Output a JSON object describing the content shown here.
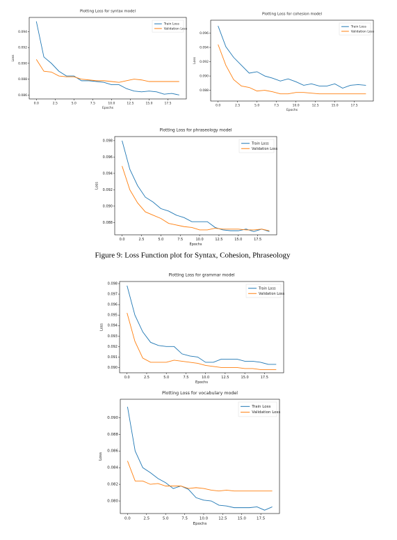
{
  "caption": "Figure 9: Loss Function plot for Syntax, Cohesion, Phraseology",
  "chart_data": [
    {
      "type": "line",
      "title": "Plotting Loss for syntax model",
      "xlabel": "Epochs",
      "ylabel": "Loss",
      "legend": "upper right",
      "x": [
        0,
        1,
        2,
        3,
        4,
        5,
        6,
        7,
        8,
        9,
        10,
        11,
        12,
        13,
        14,
        15,
        16,
        17,
        18,
        19
      ],
      "series": [
        {
          "name": "Train Loss",
          "color": "#1f77b4",
          "values": [
            0.0953,
            0.0908,
            0.09,
            0.089,
            0.0884,
            0.0884,
            0.0878,
            0.0878,
            0.0877,
            0.0876,
            0.0873,
            0.0873,
            0.0868,
            0.0865,
            0.0864,
            0.0865,
            0.0864,
            0.0861,
            0.0862,
            0.086
          ]
        },
        {
          "name": "Validation Loss",
          "color": "#ff7f0e",
          "values": [
            0.0905,
            0.089,
            0.0889,
            0.0884,
            0.0883,
            0.0883,
            0.088,
            0.0879,
            0.0878,
            0.0878,
            0.0877,
            0.0876,
            0.0878,
            0.088,
            0.0879,
            0.0877,
            0.0877,
            0.0877,
            0.0877,
            0.0877
          ]
        }
      ],
      "xlim": [
        -0.95,
        19.95
      ],
      "ylim": [
        0.0855,
        0.0958
      ],
      "xticks": [
        {
          "value": 0,
          "label": "0.0"
        },
        2.5,
        {
          "value": 5,
          "label": "5.0"
        },
        7.5,
        {
          "value": 10,
          "label": "10.0"
        },
        12.5,
        {
          "value": 15,
          "label": "15.0"
        },
        17.5
      ],
      "yticks": [
        0.086,
        0.088,
        {
          "value": 0.09,
          "label": "0.090"
        },
        0.092,
        0.094
      ]
    },
    {
      "type": "line",
      "title": "Plotting Loss for cohesion model",
      "xlabel": "Epochs",
      "ylabel": "Loss",
      "legend": "upper right",
      "x": [
        0,
        1,
        2,
        3,
        4,
        5,
        6,
        7,
        8,
        9,
        10,
        11,
        12,
        13,
        14,
        15,
        16,
        17,
        18,
        19
      ],
      "series": [
        {
          "name": "Train Loss",
          "color": "#1f77b4",
          "values": [
            0.097,
            0.0941,
            0.0926,
            0.0915,
            0.0904,
            0.0906,
            0.09,
            0.0897,
            0.0893,
            0.0896,
            0.0892,
            0.0887,
            0.0889,
            0.0886,
            0.0886,
            0.0889,
            0.0883,
            0.0887,
            0.0888,
            0.0887
          ]
        },
        {
          "name": "Validation Loss",
          "color": "#ff7f0e",
          "values": [
            0.0944,
            0.0915,
            0.0895,
            0.0886,
            0.0884,
            0.0879,
            0.088,
            0.0878,
            0.0875,
            0.0875,
            0.0877,
            0.0877,
            0.0876,
            0.0875,
            0.0875,
            0.0875,
            0.0875,
            0.0875,
            0.0875,
            0.0875
          ]
        }
      ],
      "xlim": [
        -0.95,
        19.95
      ],
      "ylim": [
        0.0865,
        0.0978
      ],
      "xticks": [
        {
          "value": 0,
          "label": "0.0"
        },
        2.5,
        {
          "value": 5,
          "label": "5.0"
        },
        7.5,
        {
          "value": 10,
          "label": "10.0"
        },
        12.5,
        {
          "value": 15,
          "label": "15.0"
        },
        17.5
      ],
      "yticks": [
        0.088,
        {
          "value": 0.09,
          "label": "0.090"
        },
        0.092,
        0.094,
        0.096
      ]
    },
    {
      "type": "line",
      "title": "Plotting Loss for phraseology model",
      "xlabel": "Epochs",
      "ylabel": "Loss",
      "legend": "upper right",
      "x": [
        0,
        1,
        2,
        3,
        4,
        5,
        6,
        7,
        8,
        9,
        10,
        11,
        12,
        13,
        14,
        15,
        16,
        17,
        18,
        19
      ],
      "series": [
        {
          "name": "Train Loss",
          "color": "#1f77b4",
          "values": [
            0.098,
            0.0945,
            0.0925,
            0.0911,
            0.0905,
            0.0897,
            0.0894,
            0.0889,
            0.0886,
            0.0881,
            0.0881,
            0.0881,
            0.0874,
            0.0871,
            0.087,
            0.087,
            0.0872,
            0.0869,
            0.0872,
            0.0869
          ]
        },
        {
          "name": "Validation Loss",
          "color": "#ff7f0e",
          "values": [
            0.0949,
            0.092,
            0.0904,
            0.0893,
            0.0889,
            0.0885,
            0.0879,
            0.0877,
            0.0875,
            0.0874,
            0.0871,
            0.0871,
            0.0873,
            0.0872,
            0.0872,
            0.0872,
            0.0871,
            0.0871,
            0.0872,
            0.087
          ]
        }
      ],
      "xlim": [
        -0.95,
        19.95
      ],
      "ylim": [
        0.0865,
        0.0985
      ],
      "xticks": [
        {
          "value": 0,
          "label": "0.0"
        },
        2.5,
        {
          "value": 5,
          "label": "5.0"
        },
        7.5,
        {
          "value": 10,
          "label": "10.0"
        },
        12.5,
        {
          "value": 15,
          "label": "15.0"
        },
        17.5
      ],
      "yticks": [
        0.088,
        {
          "value": 0.09,
          "label": "0.090"
        },
        0.092,
        0.094,
        0.096,
        0.098
      ]
    },
    {
      "type": "line",
      "title": "Plotting Loss for grammar model",
      "xlabel": "Epochs",
      "ylabel": "Loss",
      "legend": "upper right",
      "x": [
        0,
        1,
        2,
        3,
        4,
        5,
        6,
        7,
        8,
        9,
        10,
        11,
        12,
        13,
        14,
        15,
        16,
        17,
        18,
        19
      ],
      "series": [
        {
          "name": "Train Loss",
          "color": "#1f77b4",
          "values": [
            0.0978,
            0.095,
            0.0934,
            0.0924,
            0.0921,
            0.092,
            0.092,
            0.0913,
            0.0911,
            0.091,
            0.0905,
            0.0905,
            0.0908,
            0.0908,
            0.0908,
            0.0906,
            0.0906,
            0.0905,
            0.0903,
            0.0903
          ]
        },
        {
          "name": "Validation Loss",
          "color": "#ff7f0e",
          "values": [
            0.0952,
            0.0925,
            0.0909,
            0.0905,
            0.0905,
            0.0905,
            0.0907,
            0.0906,
            0.0905,
            0.0904,
            0.0902,
            0.0901,
            0.09,
            0.09,
            0.09,
            0.0899,
            0.0899,
            0.0898,
            0.0898,
            0.0898
          ]
        }
      ],
      "xlim": [
        -0.95,
        19.95
      ],
      "ylim": [
        0.0895,
        0.0982
      ],
      "xticks": [
        {
          "value": 0,
          "label": "0.0"
        },
        2.5,
        {
          "value": 5,
          "label": "5.0"
        },
        7.5,
        {
          "value": 10,
          "label": "10.0"
        },
        12.5,
        {
          "value": 15,
          "label": "15.0"
        },
        17.5
      ],
      "yticks": [
        {
          "value": 0.09,
          "label": "0.090"
        },
        0.091,
        0.092,
        0.093,
        0.094,
        0.095,
        0.096,
        0.097,
        0.098
      ]
    },
    {
      "type": "line",
      "title": "Plotting Loss for vocabulary model",
      "xlabel": "Epochs",
      "ylabel": "Loss",
      "legend": "upper right",
      "x": [
        0,
        1,
        2,
        3,
        4,
        5,
        6,
        7,
        8,
        9,
        10,
        11,
        12,
        13,
        14,
        15,
        16,
        17,
        18,
        19
      ],
      "series": [
        {
          "name": "Train Loss",
          "color": "#1f77b4",
          "values": [
            0.0913,
            0.086,
            0.084,
            0.0834,
            0.0827,
            0.0822,
            0.0815,
            0.0818,
            0.0814,
            0.0804,
            0.0801,
            0.08,
            0.0795,
            0.0794,
            0.0792,
            0.0792,
            0.0792,
            0.0793,
            0.0789,
            0.0793
          ]
        },
        {
          "name": "Validation Loss",
          "color": "#ff7f0e",
          "values": [
            0.0848,
            0.0824,
            0.0824,
            0.082,
            0.0821,
            0.0818,
            0.0818,
            0.0818,
            0.0815,
            0.0816,
            0.0815,
            0.0813,
            0.0812,
            0.0813,
            0.0812,
            0.0812,
            0.0812,
            0.0812,
            0.0812,
            0.0812
          ]
        }
      ],
      "xlim": [
        -0.95,
        19.95
      ],
      "ylim": [
        0.0785,
        0.0922
      ],
      "xticks": [
        {
          "value": 0,
          "label": "0.0"
        },
        2.5,
        {
          "value": 5,
          "label": "5.0"
        },
        7.5,
        {
          "value": 10,
          "label": "10.0"
        },
        12.5,
        {
          "value": 15,
          "label": "15.0"
        },
        17.5
      ],
      "yticks": [
        {
          "value": 0.08,
          "label": "0.080"
        },
        0.082,
        0.084,
        0.086,
        0.088,
        {
          "value": 0.09,
          "label": "0.090"
        }
      ]
    }
  ]
}
